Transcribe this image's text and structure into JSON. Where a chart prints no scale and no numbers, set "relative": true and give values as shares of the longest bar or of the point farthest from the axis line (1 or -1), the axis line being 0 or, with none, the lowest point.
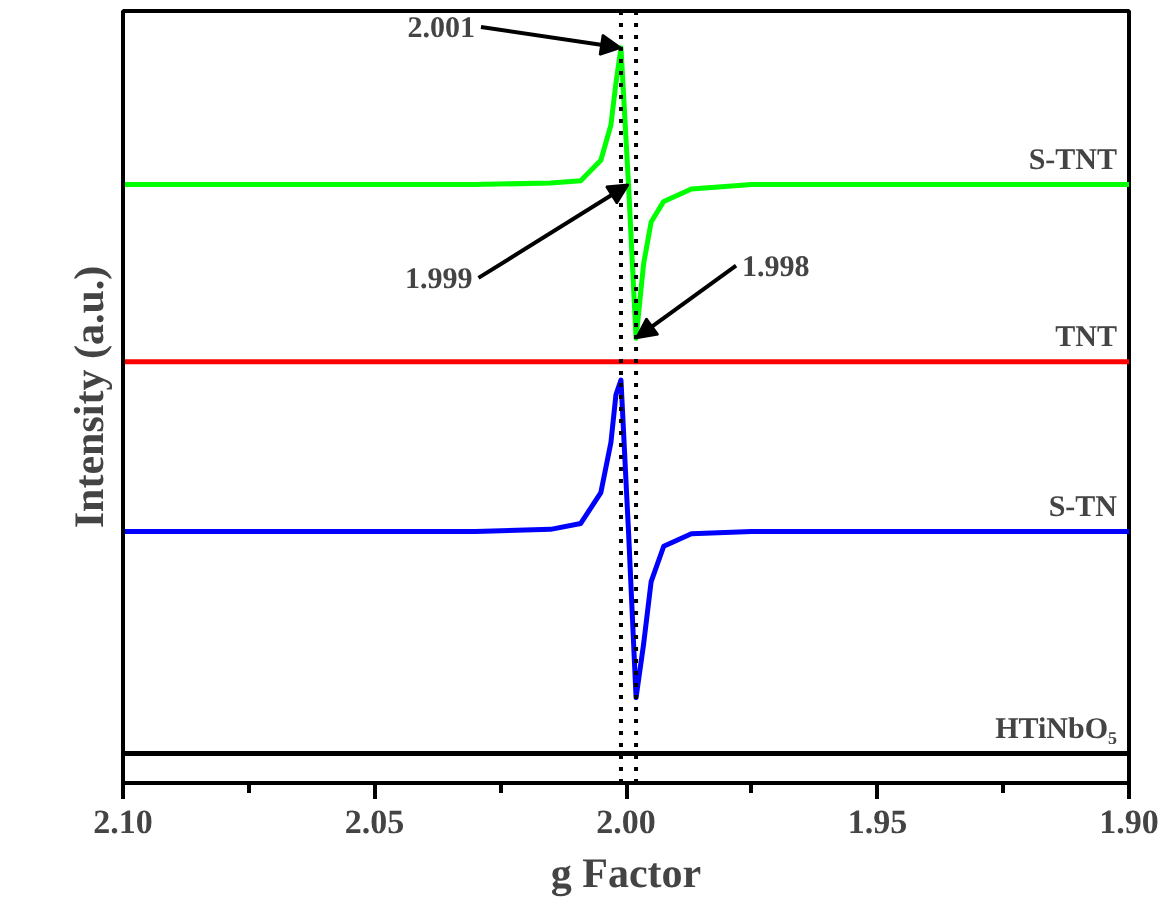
{
  "chart_data": {
    "type": "line",
    "relative": true,
    "xlabel": "g Factor",
    "ylabel": "Intensity (a.u.)",
    "x": [
      2.1,
      2.03,
      2.015,
      2.009,
      2.005,
      2.003,
      2.002,
      2.001,
      1.9995,
      1.998,
      1.9965,
      1.995,
      1.9925,
      1.987,
      1.975,
      1.9
    ],
    "xlim": [
      2.1,
      1.9
    ],
    "xticks": [
      {
        "value": 2.1,
        "label": "2.10"
      },
      {
        "value": 2.075,
        "label": null
      },
      {
        "value": 2.05,
        "label": "2.05"
      },
      {
        "value": 2.025,
        "label": null
      },
      {
        "value": 2.0,
        "label": "2.00"
      },
      {
        "value": 1.975,
        "label": null
      },
      {
        "value": 1.95,
        "label": "1.95"
      },
      {
        "value": 1.925,
        "label": null
      },
      {
        "value": 1.9,
        "label": "1.90"
      }
    ],
    "series": [
      {
        "name": "S-TNT",
        "color": "#00ff00",
        "values": [
          0.814,
          0.814,
          0.816,
          0.819,
          0.847,
          0.895,
          0.952,
          1.0,
          0.814,
          0.605,
          0.706,
          0.763,
          0.791,
          0.808,
          0.814,
          0.814
        ]
      },
      {
        "name": "TNT",
        "color": "#ff0000",
        "values": [
          0.573,
          0.573,
          0.573,
          0.573,
          0.573,
          0.573,
          0.573,
          0.573,
          0.573,
          0.573,
          0.573,
          0.573,
          0.573,
          0.573,
          0.573,
          0.573
        ]
      },
      {
        "name": "S-TN",
        "color": "#0000ff",
        "values": [
          0.342,
          0.342,
          0.345,
          0.353,
          0.395,
          0.463,
          0.528,
          0.548,
          0.342,
          0.116,
          0.189,
          0.274,
          0.322,
          0.339,
          0.342,
          0.342
        ]
      },
      {
        "name": "HTiNbO₅",
        "color": "#000000",
        "values": [
          0.04,
          0.04,
          0.04,
          0.04,
          0.04,
          0.04,
          0.04,
          0.04,
          0.04,
          0.04,
          0.04,
          0.04,
          0.04,
          0.04,
          0.04,
          0.04
        ]
      }
    ],
    "ref_lines": [
      {
        "axis": "x",
        "value": 2.001,
        "color": "#000000",
        "line_style": "dotted"
      },
      {
        "axis": "x",
        "value": 1.998,
        "color": "#000000",
        "line_style": "dotted"
      }
    ],
    "annotations": [
      {
        "text": "2.001",
        "x": 2.001,
        "y": 1.0
      },
      {
        "text": "1.999",
        "x": 1.9995,
        "y": 0.814
      },
      {
        "text": "1.998",
        "x": 1.998,
        "y": 0.605
      }
    ],
    "grid": false,
    "legend": false,
    "line_style": "solid",
    "marker": "none"
  }
}
